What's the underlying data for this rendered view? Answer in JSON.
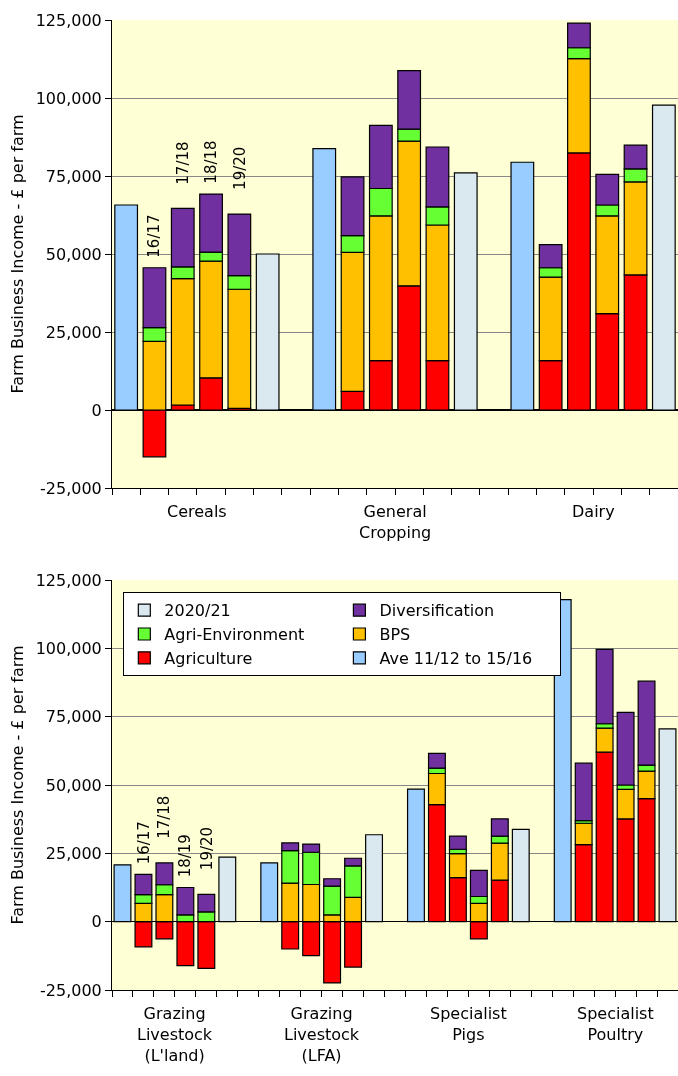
{
  "chart_data": [
    {
      "type": "bar",
      "stacked": true,
      "ylabel": "Farm Business Income - £ per farm",
      "grid": "y",
      "legend": false,
      "categories": [
        null,
        null,
        null,
        null,
        null,
        null,
        null,
        null,
        null,
        null,
        null,
        null,
        null,
        null,
        null,
        null,
        null,
        null,
        null,
        null
      ],
      "ylim": [
        -25000,
        125000
      ],
      "yticks": [
        {
          "value": -25000,
          "label": "-25,000"
        },
        0,
        {
          "value": 25000,
          "label": "25,000"
        },
        {
          "value": 50000,
          "label": "50,000"
        },
        {
          "value": 75000,
          "label": "75,000"
        },
        {
          "value": 100000,
          "label": "100,000"
        },
        {
          "value": 125000,
          "label": "125,000"
        }
      ],
      "annotations": [
        "16/17",
        "17/18",
        "18/18",
        "19/20",
        "Cereals",
        "General Cropping",
        "Dairy"
      ],
      "series": [
        {
          "color": "#99ccff",
          "values": [
            65700,
            null,
            null,
            null,
            null,
            null,
            null,
            83800,
            null,
            null,
            null,
            null,
            null,
            null,
            79400,
            null,
            null,
            null,
            null,
            null
          ]
        },
        {
          "color": "#ff0000",
          "values": [
            null,
            -15000,
            1600,
            10300,
            500,
            null,
            null,
            null,
            6000,
            15800,
            39800,
            15800,
            null,
            null,
            null,
            15800,
            82400,
            30900,
            43300,
            null
          ]
        },
        {
          "color": "#ffc000",
          "values": [
            null,
            22000,
            40500,
            37400,
            38200,
            null,
            null,
            null,
            44500,
            46400,
            46400,
            43500,
            null,
            null,
            null,
            26800,
            30200,
            31300,
            29800,
            null
          ]
        },
        {
          "color": "#66ff33",
          "values": [
            null,
            4400,
            3800,
            2900,
            4400,
            null,
            null,
            null,
            5400,
            8800,
            3800,
            5800,
            null,
            null,
            null,
            3000,
            3500,
            3500,
            4200,
            null
          ]
        },
        {
          "color": "#7030a0",
          "values": [
            null,
            19200,
            18700,
            18600,
            19700,
            null,
            null,
            null,
            18800,
            20200,
            18800,
            19200,
            null,
            null,
            null,
            7400,
            7900,
            9800,
            7600,
            null
          ]
        },
        {
          "color": "#dae8f0",
          "values": [
            null,
            null,
            null,
            null,
            null,
            50000,
            null,
            null,
            null,
            null,
            null,
            null,
            76000,
            null,
            null,
            null,
            null,
            null,
            null,
            97700
          ]
        }
      ]
    },
    {
      "type": "bar",
      "stacked": true,
      "ylabel": "Farm Business Income - £ per farm",
      "grid": "y",
      "legend": "top left",
      "categories": [
        null,
        null,
        null,
        null,
        null,
        null,
        null,
        null,
        null,
        null,
        null,
        null,
        null,
        null,
        null,
        null,
        null,
        null,
        null,
        null,
        null,
        null,
        null,
        null,
        null,
        null,
        null
      ],
      "ylim": [
        -25000,
        125000
      ],
      "yticks": [
        {
          "value": -25000,
          "label": "-25,000"
        },
        0,
        {
          "value": 25000,
          "label": "25,000"
        },
        {
          "value": 50000,
          "label": "50,000"
        },
        {
          "value": 75000,
          "label": "75,000"
        },
        {
          "value": 100000,
          "label": "100,000"
        },
        {
          "value": 125000,
          "label": "125,000"
        }
      ],
      "annotations": [
        "16/17",
        "17/18",
        "18/19",
        "19/20",
        "Grazing Livestock (L'land)",
        "Grazing Livestock (LFA)",
        "Specialist Pigs",
        "Specialist Poultry"
      ],
      "series": [
        {
          "name": "Ave 11/12 to 15/16",
          "color": "#99ccff",
          "values": [
            20800,
            null,
            null,
            null,
            null,
            null,
            null,
            21500,
            null,
            null,
            null,
            null,
            null,
            null,
            48500,
            null,
            null,
            null,
            null,
            null,
            null,
            117800,
            null,
            null,
            null,
            null,
            null
          ]
        },
        {
          "name": "Agriculture",
          "color": "#ff0000",
          "values": [
            null,
            -9200,
            -6300,
            -16100,
            -17100,
            null,
            null,
            null,
            -10000,
            -12400,
            -22400,
            -16600,
            null,
            null,
            null,
            42800,
            16100,
            -6300,
            15200,
            null,
            null,
            null,
            28200,
            62000,
            37600,
            45000,
            null
          ]
        },
        {
          "name": "BPS",
          "color": "#ffc000",
          "values": [
            null,
            6700,
            9900,
            null,
            null,
            null,
            null,
            null,
            14100,
            13600,
            2500,
            8900,
            null,
            null,
            null,
            11400,
            8800,
            6700,
            13500,
            null,
            null,
            null,
            7800,
            8800,
            10800,
            10100,
            null
          ]
        },
        {
          "name": "Agri-Environment",
          "color": "#66ff33",
          "values": [
            null,
            3200,
            3600,
            2500,
            3600,
            null,
            null,
            null,
            11900,
            11800,
            10500,
            11500,
            null,
            null,
            null,
            2000,
            1600,
            2500,
            2600,
            null,
            null,
            null,
            1000,
            1600,
            1600,
            2200,
            null
          ]
        },
        {
          "name": "Diversification",
          "color": "#7030a0",
          "values": [
            null,
            7400,
            8000,
            10000,
            6400,
            null,
            null,
            null,
            2800,
            3000,
            2700,
            2800,
            null,
            null,
            null,
            5400,
            4800,
            9600,
            6300,
            null,
            null,
            null,
            21000,
            27200,
            26600,
            30700,
            null
          ]
        },
        {
          "name": "2020/21",
          "color": "#dae8f0",
          "values": [
            null,
            null,
            null,
            null,
            null,
            23600,
            null,
            null,
            null,
            null,
            null,
            null,
            31800,
            null,
            null,
            null,
            null,
            null,
            null,
            33800,
            null,
            null,
            null,
            null,
            null,
            null,
            70500
          ]
        }
      ]
    }
  ]
}
